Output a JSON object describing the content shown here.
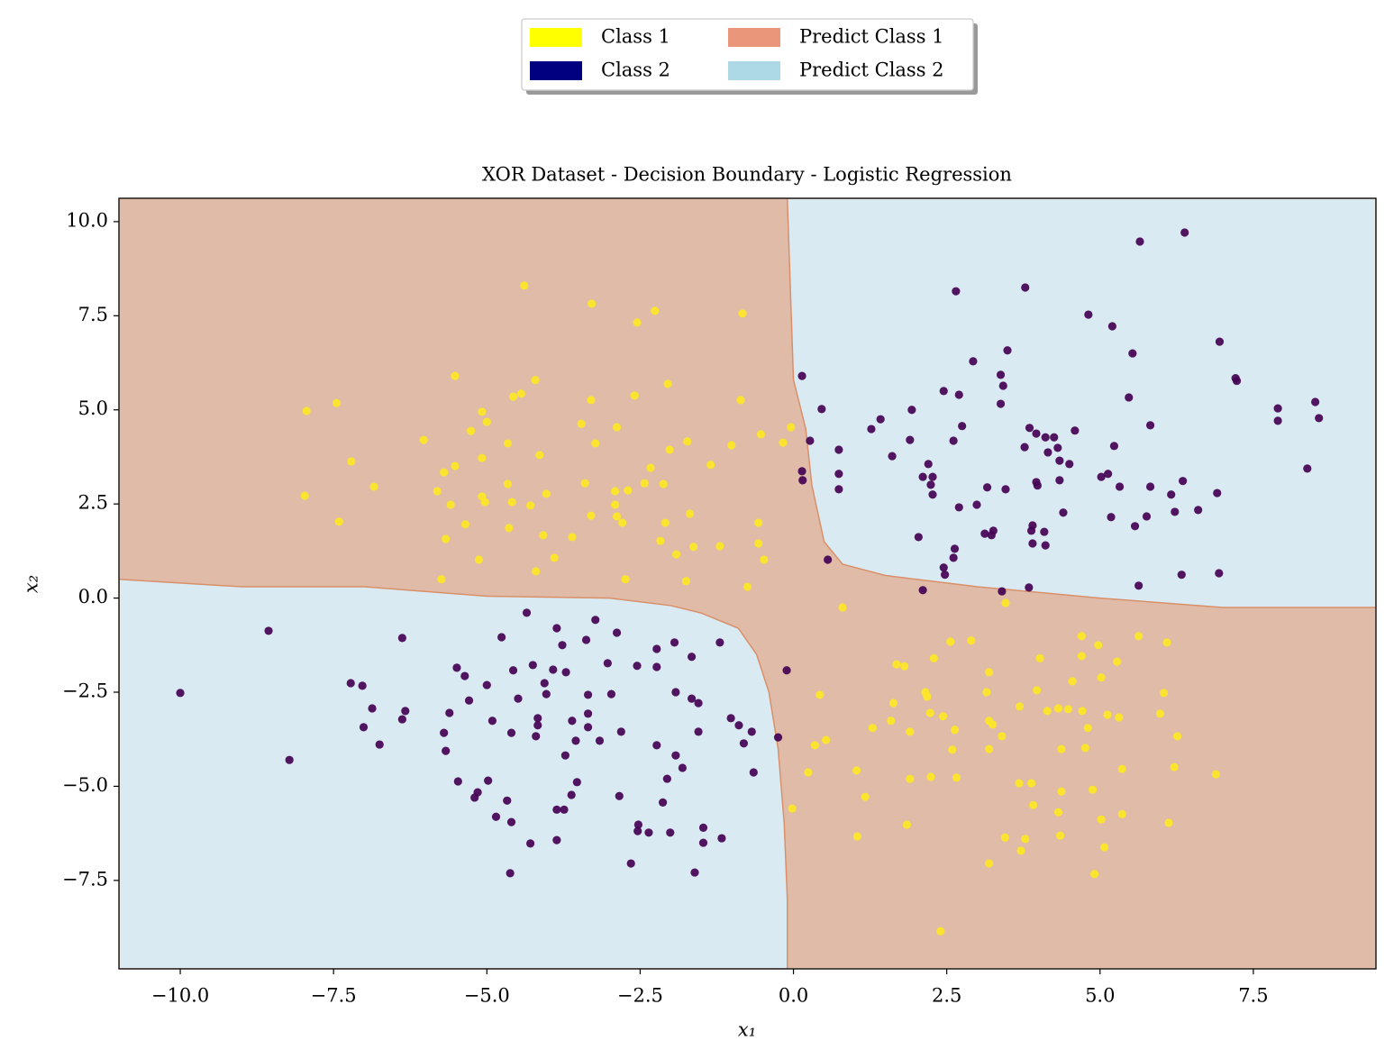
{
  "chart_data": {
    "type": "scatter",
    "title": "XOR Dataset - Decision Boundary - Logistic Regression",
    "xlabel": "x₁",
    "ylabel": "x₂",
    "xlim": [
      -11,
      9.5
    ],
    "ylim": [
      -9.85,
      10.62
    ],
    "xticks": [
      {
        "value": -10,
        "label": "−10.0"
      },
      {
        "value": -7.5,
        "label": "−7.5"
      },
      {
        "value": -5,
        "label": "−5.0"
      },
      {
        "value": -2.5,
        "label": "−2.5"
      },
      {
        "value": 0,
        "label": "0.0"
      },
      2.5,
      {
        "value": 5,
        "label": "5.0"
      },
      7.5
    ],
    "yticks": [
      {
        "value": -7.5,
        "label": "−7.5"
      },
      {
        "value": -5,
        "label": "−5.0"
      },
      {
        "value": -2.5,
        "label": "−2.5"
      },
      {
        "value": 0,
        "label": "0.0"
      },
      2.5,
      {
        "value": 5,
        "label": "5.0"
      },
      7.5,
      {
        "value": 10,
        "label": "10.0"
      }
    ],
    "legend_loc": "upper center",
    "series": [
      {
        "name": "Class 1",
        "color": "#ffff00",
        "point_color": "#fde725",
        "x": [
          -4.39,
          -3.29,
          -2.55,
          -2.26,
          -0.83,
          -7.94,
          -7.45,
          -5.52,
          -4.21,
          -4.44,
          -4.57,
          -2.05,
          -3.3,
          -2.59,
          -0.86,
          -5.08,
          -5.0,
          -5.26,
          -3.46,
          -2.88,
          -6.03,
          -4.66,
          -3.23,
          -2.02,
          -1.73,
          -1.01,
          -0.53,
          -0.17,
          -0.04,
          -7.21,
          -5.52,
          -5.08,
          -4.14,
          -2.33,
          -1.35,
          -5.7,
          -4.66,
          -3.4,
          -2.43,
          -6.84,
          -7.97,
          -5.81,
          -5.08,
          -4.03,
          -2.91,
          -2.7,
          -2.12,
          -5.59,
          -5.03,
          -4.59,
          -4.29,
          -2.91,
          -3.3,
          -2.88,
          -1.69,
          -7.41,
          -5.35,
          -4.64,
          -2.79,
          -2.09,
          -0.57,
          -5.67,
          -4.08,
          -3.61,
          -2.17,
          -1.63,
          -1.2,
          -0.57,
          -5.13,
          -3.9,
          -1.91,
          -0.48,
          -5.74,
          -4.2,
          -2.74,
          -1.75,
          -0.75,
          0.8,
          3.46,
          2.56,
          2.9,
          4.7,
          4.97,
          5.63,
          6.09,
          2.29,
          4.02,
          4.7,
          5.28,
          1.68,
          1.81,
          3.19,
          4.55,
          5.02,
          2.15,
          3.15,
          3.97,
          0.43,
          2.18,
          6.04,
          1.63,
          3.69,
          4.32,
          4.48,
          4.71,
          2.23,
          2.44,
          3.19,
          4.14,
          5.12,
          5.31,
          5.98,
          1.59,
          3.25,
          4.8,
          1.9,
          1.29,
          2.63,
          3.4,
          6.26,
          0.53,
          0.35,
          3.19,
          4.37,
          4.76,
          2.59,
          5.36,
          6.21,
          2.24,
          2.66,
          1.9,
          0.24,
          1.03,
          3.68,
          3.88,
          6.89,
          4.37,
          4.88,
          1.17,
          -0.02,
          3.91,
          1.85,
          4.32,
          5.36,
          5.02,
          6.12,
          1.04,
          4.35,
          5.07,
          3.45,
          3.78,
          3.19,
          4.91,
          2.4,
          3.71
        ],
        "y": [
          8.3,
          7.82,
          7.32,
          7.63,
          7.56,
          4.97,
          5.18,
          5.9,
          5.79,
          5.43,
          5.35,
          5.69,
          5.26,
          5.38,
          5.26,
          4.95,
          4.68,
          4.44,
          4.63,
          4.54,
          4.2,
          4.11,
          4.11,
          3.94,
          4.16,
          4.06,
          4.35,
          4.13,
          4.54,
          3.63,
          3.51,
          3.72,
          3.8,
          3.46,
          3.54,
          3.34,
          3.03,
          3.05,
          3.05,
          2.96,
          2.72,
          2.84,
          2.7,
          2.77,
          2.84,
          2.86,
          3.03,
          2.48,
          2.55,
          2.55,
          2.46,
          2.48,
          2.19,
          2.17,
          2.24,
          2.03,
          1.96,
          1.86,
          2.0,
          2.0,
          2.0,
          1.57,
          1.67,
          1.62,
          1.52,
          1.36,
          1.38,
          1.45,
          1.02,
          1.07,
          1.16,
          1.02,
          0.5,
          0.71,
          0.5,
          0.45,
          0.3,
          -0.25,
          -0.13,
          -1.16,
          -1.13,
          -1.01,
          -1.25,
          -1.01,
          -1.18,
          -1.6,
          -1.6,
          -1.54,
          -1.69,
          -1.76,
          -1.81,
          -1.97,
          -2.21,
          -2.11,
          -2.5,
          -2.5,
          -2.45,
          -2.57,
          -2.62,
          -2.52,
          -2.79,
          -2.88,
          -2.93,
          -2.95,
          -3.0,
          -3.05,
          -3.14,
          -3.26,
          -3.0,
          -3.1,
          -3.17,
          -3.07,
          -3.26,
          -3.36,
          -3.45,
          -3.55,
          -3.45,
          -3.5,
          -3.67,
          -3.67,
          -3.77,
          -3.91,
          -4.01,
          -4.01,
          -3.98,
          -4.03,
          -4.54,
          -4.49,
          -4.75,
          -4.77,
          -4.8,
          -4.63,
          -4.58,
          -4.92,
          -4.92,
          -4.68,
          -5.14,
          -5.09,
          -5.28,
          -5.59,
          -5.5,
          -6.02,
          -5.69,
          -5.74,
          -5.88,
          -5.97,
          -6.33,
          -6.31,
          -6.62,
          -6.36,
          -6.4,
          -7.05,
          -7.33,
          -8.85,
          -6.71
        ]
      },
      {
        "name": "Class 2",
        "color": "#000080",
        "point_color": "#440154",
        "x": [
          6.38,
          5.65,
          2.65,
          3.78,
          4.81,
          5.2,
          6.95,
          3.49,
          5.53,
          2.93,
          7.21,
          7.23,
          0.14,
          3.38,
          3.42,
          2.45,
          2.7,
          5.47,
          3.38,
          8.51,
          1.93,
          0.46,
          7.9,
          8.57,
          7.9,
          1.42,
          2.75,
          5.82,
          3.85,
          1.27,
          4.59,
          3.96,
          4.11,
          4.25,
          2.61,
          0.27,
          1.9,
          3.77,
          4.31,
          5.23,
          0.74,
          4.15,
          1.61,
          4.34,
          4.5,
          2.2,
          0.14,
          0.74,
          5.13,
          2.11,
          2.27,
          5.02,
          4.34,
          6.35,
          3.96,
          0.15,
          2.24,
          3.98,
          3.16,
          5.32,
          0.74,
          3.46,
          5.82,
          2.27,
          6.16,
          6.91,
          2.99,
          2.7,
          4.4,
          6.22,
          6.6,
          5.18,
          5.76,
          3.9,
          5.57,
          3.26,
          3.88,
          2.04,
          3.12,
          3.23,
          4.09,
          3.9,
          4.11,
          8.38,
          0.56,
          2.63,
          2.61,
          2.45,
          2.47,
          6.94,
          6.33,
          5.63,
          3.84,
          3.4,
          2.11,
          -8.56,
          -10.0,
          -6.38,
          -4.76,
          -4.35,
          -3.86,
          -3.23,
          -2.88,
          -3.77,
          -3.38,
          -2.23,
          -1.94,
          -1.2,
          -1.66,
          -5.49,
          -4.25,
          -5.36,
          -4.57,
          -3.71,
          -3.03,
          -2.55,
          -2.23,
          -3.92,
          -0.11,
          -7.22,
          -7.03,
          -5.0,
          -4.06,
          -4.03,
          -3.35,
          -2.97,
          -5.29,
          -4.49,
          -1.92,
          -1.66,
          -1.55,
          -6.87,
          -5.61,
          -6.33,
          -6.38,
          -3.35,
          -4.17,
          -3.61,
          -4.91,
          -1.02,
          -7.01,
          -4.17,
          -3.35,
          -0.89,
          -5.7,
          -4.6,
          -4.2,
          -2.81,
          -1.55,
          -0.68,
          -0.25,
          -6.75,
          -3.55,
          -3.16,
          -2.23,
          -0.81,
          -5.67,
          -3.72,
          -1.92,
          -8.22,
          -1.81,
          -0.65,
          -4.98,
          -5.47,
          -3.53,
          -2.06,
          -5.15,
          -3.62,
          -2.84,
          -5.2,
          -4.67,
          -2.13,
          -3.86,
          -3.74,
          -4.85,
          -4.6,
          -2.53,
          -1.47,
          -2.54,
          -2.36,
          -2.01,
          -1.17,
          -1.47,
          -3.86,
          -4.29,
          -2.65,
          -4.62,
          -1.61
        ],
        "y": [
          9.71,
          9.47,
          8.15,
          8.25,
          7.53,
          7.22,
          6.81,
          6.58,
          6.5,
          6.29,
          5.84,
          5.77,
          5.9,
          5.93,
          5.64,
          5.5,
          5.4,
          5.33,
          5.16,
          5.21,
          5.0,
          5.02,
          5.04,
          4.78,
          4.71,
          4.75,
          4.57,
          4.59,
          4.52,
          4.49,
          4.45,
          4.37,
          4.27,
          4.27,
          4.18,
          4.18,
          4.2,
          4.01,
          3.99,
          4.04,
          3.94,
          3.87,
          3.77,
          3.65,
          3.56,
          3.56,
          3.37,
          3.3,
          3.3,
          3.22,
          3.22,
          3.22,
          3.13,
          3.11,
          3.08,
          3.13,
          3.01,
          2.99,
          2.94,
          2.96,
          2.89,
          2.89,
          2.96,
          2.75,
          2.75,
          2.79,
          2.48,
          2.41,
          2.27,
          2.29,
          2.34,
          2.15,
          2.17,
          1.93,
          1.91,
          1.79,
          1.79,
          1.62,
          1.71,
          1.67,
          1.76,
          1.45,
          1.4,
          3.44,
          1.02,
          1.31,
          1.07,
          0.81,
          0.62,
          0.66,
          0.62,
          0.33,
          0.28,
          0.18,
          0.21,
          -0.87,
          -2.52,
          -1.06,
          -1.04,
          -0.39,
          -0.8,
          -0.58,
          -0.92,
          -1.25,
          -1.11,
          -1.35,
          -1.18,
          -1.18,
          -1.56,
          -1.85,
          -1.78,
          -2.07,
          -1.92,
          -1.97,
          -1.73,
          -1.8,
          -1.83,
          -1.9,
          -1.92,
          -2.26,
          -2.33,
          -2.31,
          -2.26,
          -2.55,
          -2.57,
          -2.55,
          -2.72,
          -2.67,
          -2.5,
          -2.67,
          -2.79,
          -2.93,
          -3.05,
          -3.0,
          -3.22,
          -3.07,
          -3.19,
          -3.26,
          -3.26,
          -3.19,
          -3.43,
          -3.38,
          -3.43,
          -3.38,
          -3.58,
          -3.58,
          -3.67,
          -3.55,
          -3.55,
          -3.55,
          -3.7,
          -3.89,
          -3.79,
          -3.79,
          -3.91,
          -3.86,
          -4.06,
          -4.18,
          -4.18,
          -4.3,
          -4.51,
          -4.63,
          -4.85,
          -4.87,
          -4.89,
          -4.8,
          -5.16,
          -5.23,
          -5.26,
          -5.3,
          -5.38,
          -5.43,
          -5.62,
          -5.62,
          -5.81,
          -5.95,
          -6.02,
          -6.1,
          -6.19,
          -6.23,
          -6.23,
          -6.38,
          -6.5,
          -6.43,
          -6.52,
          -7.05,
          -7.31,
          -7.29
        ]
      }
    ],
    "regions": [
      {
        "name": "Predict Class 1",
        "color": "#e9967a",
        "fill": "#dfbba8"
      },
      {
        "name": "Predict Class 2",
        "color": "#add8e6",
        "fill": "#daeaf2",
        "polygons": [
          {
            "corner": "upper right",
            "x": [
              -0.1,
              0,
              0.2,
              0.3,
              0.5,
              0.8,
              1.5,
              3,
              5,
              7,
              9.5
            ],
            "y": [
              10.62,
              5.8,
              4.5,
              3,
              1.5,
              0.9,
              0.6,
              0.3,
              0,
              -0.25,
              -0.25
            ]
          },
          {
            "corner": "lower left",
            "x": [
              -11,
              -9,
              -7,
              -5,
              -3,
              -2,
              -1.5,
              -0.9,
              -0.6,
              -0.4,
              -0.25,
              -0.15,
              -0.1,
              -0.1
            ],
            "y": [
              0.5,
              0.3,
              0.3,
              0.05,
              0,
              -0.2,
              -0.4,
              -0.8,
              -1.5,
              -2.5,
              -4,
              -6,
              -8,
              -9.85
            ]
          }
        ]
      }
    ]
  }
}
